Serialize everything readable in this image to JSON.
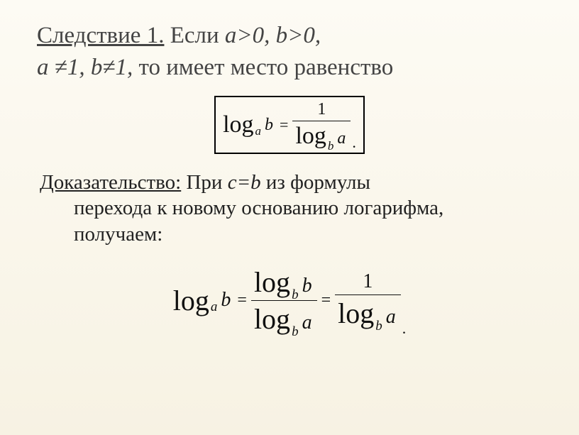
{
  "title": {
    "corollary": "Следствие 1.",
    "if": " Если ",
    "cond1": "a>0,   b>0,",
    "cond2_a": "a ",
    "neq": "≠",
    "cond2_b": "1,   b",
    "cond2_c": "1,",
    "then": " то имеет место равенство"
  },
  "formula1": {
    "log": "log",
    "sub_a": "a",
    "var_b": "b",
    "eq": "=",
    "one": "1",
    "sub_b": "b",
    "var_a": "a",
    "dot": "."
  },
  "proof": {
    "label": "Доказательство:",
    "text1": " При ",
    "cb": "c=b",
    "text2": "   из формулы",
    "text3": "перехода к новому основанию логарифма,",
    "text4": "получаем:"
  },
  "formula2": {
    "log": "log",
    "sub_a": "a",
    "sub_b": "b",
    "var_a": "a",
    "var_b": "b",
    "eq": "=",
    "one": "1",
    "dot": "."
  }
}
